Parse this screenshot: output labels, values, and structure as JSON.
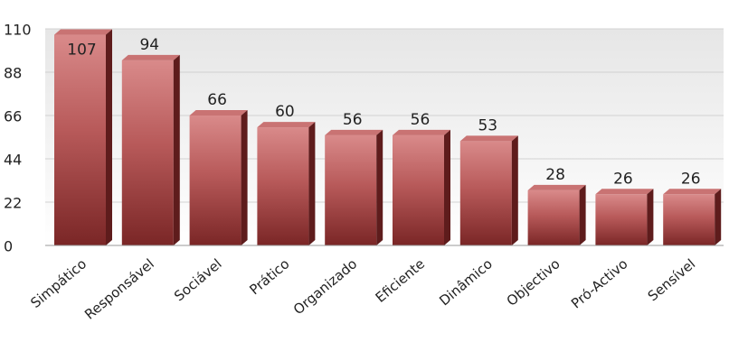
{
  "chart_data": {
    "type": "bar",
    "title": "",
    "xlabel": "",
    "ylabel": "",
    "categories": [
      "Simpático",
      "Responsável",
      "Sociável",
      "Prático",
      "Organizado",
      "Eficiente",
      "Dinâmico",
      "Objectivo",
      "Pró-Activo",
      "Sensível"
    ],
    "values": [
      107,
      94,
      66,
      60,
      56,
      56,
      53,
      28,
      26,
      26
    ],
    "ylim": [
      0,
      110
    ],
    "yticks": [
      0,
      22,
      44,
      66,
      88,
      110
    ],
    "grid": true,
    "legend": "none",
    "bar_style": "3d",
    "colors": {
      "bar_top": "#d98a8a",
      "bar_mid": "#b85a5a",
      "bar_bottom": "#7a2626",
      "background_top": "#e6e6e6",
      "background_bottom": "#ffffff"
    }
  }
}
